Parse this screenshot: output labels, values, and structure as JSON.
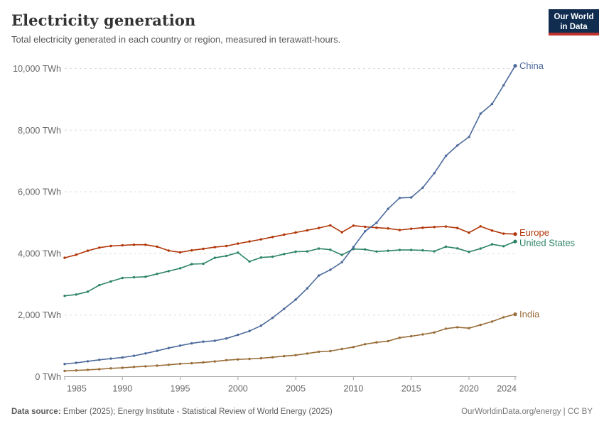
{
  "header": {
    "title": "Electricity generation",
    "subtitle": "Total electricity generated in each country or region, measured in terawatt-hours."
  },
  "logo": {
    "line1": "Our World",
    "line2": "in Data",
    "bg_color": "#102D50",
    "accent_color": "#C0312B"
  },
  "chart_data": {
    "type": "line",
    "title": "Electricity generation",
    "unit": "TWh",
    "xlabel": "",
    "ylabel": "",
    "xlim": [
      1985,
      2024
    ],
    "ylim": [
      0,
      10000
    ],
    "grid": "horizontal dashed gridlines",
    "legend": "labels at line ends, right side",
    "yticks": [
      0,
      2000,
      4000,
      6000,
      8000,
      10000
    ],
    "ytick_labels": [
      "0 TWh",
      "2,000 TWh",
      "4,000 TWh",
      "6,000 TWh",
      "8,000 TWh",
      "10,000 TWh"
    ],
    "xticks": [
      1985,
      1990,
      1995,
      2000,
      2005,
      2010,
      2015,
      2020,
      2024
    ],
    "xtick_labels": [
      "1985",
      "1990",
      "1995",
      "2000",
      "2005",
      "2010",
      "2015",
      "2020",
      "2024"
    ],
    "x": [
      1985,
      1986,
      1987,
      1988,
      1989,
      1990,
      1991,
      1992,
      1993,
      1994,
      1995,
      1996,
      1997,
      1998,
      1999,
      2000,
      2001,
      2002,
      2003,
      2004,
      2005,
      2006,
      2007,
      2008,
      2009,
      2010,
      2011,
      2012,
      2013,
      2014,
      2015,
      2016,
      2017,
      2018,
      2019,
      2020,
      2021,
      2022,
      2023,
      2024
    ],
    "series": [
      {
        "name": "China",
        "color": "#4C6A9C",
        "values": [
          411,
          450,
          497,
          545,
          585,
          621,
          678,
          754,
          839,
          928,
          1007,
          1081,
          1136,
          1167,
          1239,
          1356,
          1481,
          1654,
          1911,
          2203,
          2500,
          2866,
          3282,
          3467,
          3715,
          4207,
          4716,
          4994,
          5447,
          5800,
          5815,
          6133,
          6604,
          7166,
          7503,
          7779,
          8534,
          8849,
          9456,
          10087
        ]
      },
      {
        "name": "Europe",
        "color": "#B13507",
        "values": [
          3857,
          3956,
          4087,
          4187,
          4240,
          4263,
          4280,
          4280,
          4218,
          4090,
          4035,
          4100,
          4150,
          4203,
          4240,
          4318,
          4387,
          4456,
          4533,
          4609,
          4678,
          4748,
          4825,
          4910,
          4687,
          4902,
          4864,
          4833,
          4810,
          4757,
          4800,
          4833,
          4856,
          4872,
          4826,
          4672,
          4879,
          4741,
          4641,
          4626
        ]
      },
      {
        "name": "United States",
        "color": "#2C8465",
        "values": [
          2621,
          2665,
          2757,
          2970,
          3089,
          3203,
          3226,
          3241,
          3335,
          3425,
          3517,
          3652,
          3664,
          3858,
          3920,
          4026,
          3737,
          3867,
          3891,
          3979,
          4055,
          4065,
          4157,
          4119,
          3950,
          4143,
          4128,
          4060,
          4085,
          4110,
          4110,
          4100,
          4070,
          4216,
          4163,
          4048,
          4156,
          4295,
          4232,
          4387
        ]
      },
      {
        "name": "India",
        "color": "#996D39",
        "values": [
          186,
          202,
          221,
          242,
          269,
          289,
          315,
          336,
          356,
          385,
          417,
          436,
          464,
          494,
          535,
          561,
          576,
          597,
          628,
          665,
          699,
          751,
          808,
          830,
          899,
          960,
          1053,
          1114,
          1155,
          1262,
          1310,
          1372,
          1435,
          1557,
          1603,
          1573,
          1679,
          1788,
          1926,
          2025
        ]
      }
    ]
  },
  "footer": {
    "source_label": "Data source:",
    "source_text": "Ember (2025); Energy Institute - Statistical Review of World Energy (2025)",
    "credit_text": "OurWorldinData.org/energy | CC BY"
  }
}
